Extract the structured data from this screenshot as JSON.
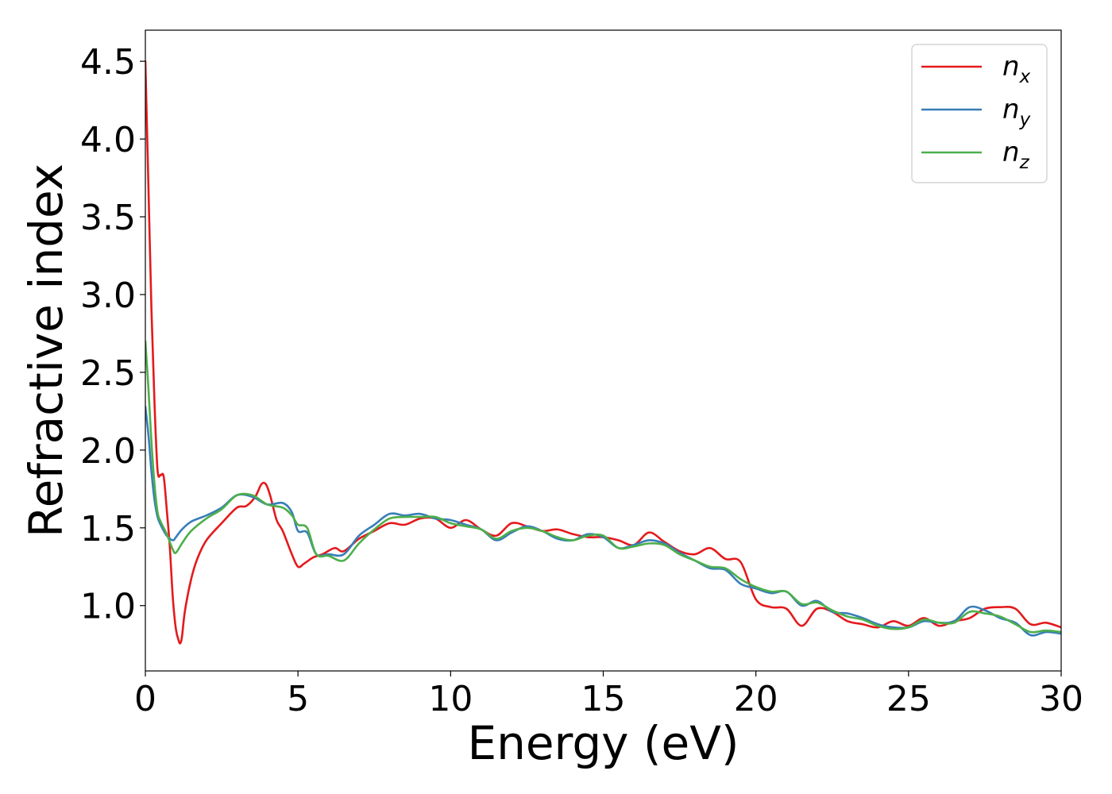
{
  "chart_data": {
    "type": "line",
    "title": "",
    "xlabel": "Energy (eV)",
    "ylabel": "Refractive index",
    "xlim": [
      0,
      30
    ],
    "ylim": [
      0.58,
      4.7
    ],
    "xticks": [
      0,
      5,
      10,
      15,
      20,
      25,
      30
    ],
    "yticks": [
      1.0,
      1.5,
      2.0,
      2.5,
      3.0,
      3.5,
      4.0,
      4.5
    ],
    "xtick_labels": [
      "0",
      "5",
      "10",
      "15",
      "20",
      "25",
      "30"
    ],
    "ytick_labels": [
      "1.0",
      "1.5",
      "2.0",
      "2.5",
      "3.0",
      "3.5",
      "4.0",
      "4.5"
    ],
    "grid": false,
    "legend_position": "top-right",
    "series": [
      {
        "name": "n_x",
        "label_base": "n",
        "label_sub": "x",
        "color": "#e41a1c",
        "x": [
          0.0,
          0.1,
          0.2,
          0.3,
          0.4,
          0.5,
          0.6,
          0.7,
          0.8,
          0.9,
          1.0,
          1.1,
          1.15,
          1.2,
          1.3,
          1.5,
          1.7,
          2.0,
          2.5,
          3.0,
          3.3,
          3.6,
          3.8,
          3.95,
          4.1,
          4.3,
          4.5,
          4.8,
          5.0,
          5.2,
          5.5,
          5.8,
          6.2,
          6.5,
          7.0,
          7.5,
          8.0,
          8.5,
          9.0,
          9.5,
          10.0,
          10.5,
          11.0,
          11.5,
          12.0,
          12.5,
          13.0,
          13.5,
          14.0,
          14.5,
          15.0,
          15.5,
          16.0,
          16.5,
          17.0,
          17.5,
          18.0,
          18.5,
          19.0,
          19.5,
          20.0,
          20.5,
          21.0,
          21.5,
          22.0,
          22.5,
          23.0,
          23.5,
          24.0,
          24.5,
          25.0,
          25.5,
          26.0,
          26.5,
          27.0,
          27.5,
          28.0,
          28.5,
          29.0,
          29.5,
          30.0
        ],
        "y": [
          4.5,
          3.7,
          2.9,
          2.3,
          1.87,
          1.84,
          1.83,
          1.62,
          1.38,
          1.05,
          0.85,
          0.77,
          0.76,
          0.8,
          0.97,
          1.17,
          1.3,
          1.42,
          1.53,
          1.63,
          1.64,
          1.7,
          1.78,
          1.78,
          1.7,
          1.55,
          1.48,
          1.33,
          1.25,
          1.27,
          1.31,
          1.33,
          1.37,
          1.35,
          1.43,
          1.48,
          1.53,
          1.52,
          1.56,
          1.56,
          1.5,
          1.55,
          1.49,
          1.45,
          1.53,
          1.51,
          1.48,
          1.49,
          1.46,
          1.44,
          1.44,
          1.42,
          1.39,
          1.47,
          1.41,
          1.35,
          1.33,
          1.37,
          1.3,
          1.28,
          1.04,
          0.99,
          0.98,
          0.87,
          0.98,
          0.96,
          0.9,
          0.88,
          0.86,
          0.9,
          0.87,
          0.92,
          0.87,
          0.9,
          0.92,
          0.98,
          0.99,
          0.98,
          0.88,
          0.89,
          0.86
        ]
      },
      {
        "name": "n_y",
        "label_base": "n",
        "label_sub": "y",
        "color": "#377eb8",
        "x": [
          0.0,
          0.1,
          0.2,
          0.3,
          0.4,
          0.5,
          0.7,
          0.9,
          1.0,
          1.2,
          1.5,
          2.0,
          2.5,
          3.0,
          3.5,
          4.0,
          4.5,
          4.8,
          5.0,
          5.3,
          5.6,
          6.0,
          6.5,
          7.0,
          7.5,
          8.0,
          8.5,
          9.0,
          9.5,
          10.0,
          10.5,
          11.0,
          11.5,
          12.0,
          12.5,
          13.0,
          13.5,
          14.0,
          14.5,
          15.0,
          15.5,
          16.0,
          16.5,
          17.0,
          17.5,
          18.0,
          18.5,
          19.0,
          19.5,
          20.0,
          20.5,
          21.0,
          21.5,
          22.0,
          22.5,
          23.0,
          23.5,
          24.0,
          24.5,
          25.0,
          25.5,
          26.0,
          26.5,
          27.0,
          27.5,
          28.0,
          28.5,
          29.0,
          29.5,
          30.0
        ],
        "y": [
          2.28,
          2.1,
          1.86,
          1.68,
          1.57,
          1.52,
          1.45,
          1.42,
          1.44,
          1.49,
          1.54,
          1.58,
          1.63,
          1.71,
          1.7,
          1.65,
          1.66,
          1.6,
          1.48,
          1.47,
          1.33,
          1.33,
          1.33,
          1.45,
          1.52,
          1.59,
          1.58,
          1.59,
          1.56,
          1.55,
          1.52,
          1.49,
          1.42,
          1.47,
          1.51,
          1.48,
          1.43,
          1.42,
          1.46,
          1.44,
          1.37,
          1.39,
          1.42,
          1.4,
          1.34,
          1.29,
          1.24,
          1.23,
          1.14,
          1.11,
          1.08,
          1.09,
          1.0,
          1.03,
          0.96,
          0.95,
          0.92,
          0.88,
          0.86,
          0.86,
          0.9,
          0.89,
          0.9,
          0.99,
          0.97,
          0.92,
          0.89,
          0.81,
          0.83,
          0.82
        ]
      },
      {
        "name": "n_z",
        "label_base": "n",
        "label_sub": "z",
        "color": "#4daf4a",
        "x": [
          0.0,
          0.1,
          0.2,
          0.3,
          0.4,
          0.5,
          0.7,
          0.9,
          1.0,
          1.2,
          1.5,
          2.0,
          2.5,
          3.0,
          3.5,
          4.0,
          4.5,
          4.8,
          5.0,
          5.3,
          5.6,
          6.0,
          6.5,
          7.0,
          7.5,
          8.0,
          8.5,
          9.0,
          9.5,
          10.0,
          10.5,
          11.0,
          11.5,
          12.0,
          12.5,
          13.0,
          13.5,
          14.0,
          14.5,
          15.0,
          15.5,
          16.0,
          16.5,
          17.0,
          17.5,
          18.0,
          18.5,
          19.0,
          19.5,
          20.0,
          20.5,
          21.0,
          21.5,
          22.0,
          22.5,
          23.0,
          23.5,
          24.0,
          24.5,
          25.0,
          25.5,
          26.0,
          26.5,
          27.0,
          27.5,
          28.0,
          28.5,
          29.0,
          29.5,
          30.0
        ],
        "y": [
          2.7,
          2.4,
          2.05,
          1.78,
          1.6,
          1.54,
          1.46,
          1.36,
          1.34,
          1.4,
          1.48,
          1.56,
          1.62,
          1.71,
          1.71,
          1.65,
          1.63,
          1.58,
          1.52,
          1.5,
          1.33,
          1.32,
          1.29,
          1.4,
          1.49,
          1.56,
          1.57,
          1.57,
          1.57,
          1.53,
          1.51,
          1.49,
          1.43,
          1.48,
          1.5,
          1.48,
          1.44,
          1.42,
          1.45,
          1.45,
          1.37,
          1.38,
          1.4,
          1.39,
          1.33,
          1.29,
          1.25,
          1.24,
          1.17,
          1.12,
          1.09,
          1.09,
          1.01,
          1.02,
          0.97,
          0.93,
          0.91,
          0.87,
          0.85,
          0.86,
          0.91,
          0.89,
          0.89,
          0.96,
          0.95,
          0.93,
          0.88,
          0.83,
          0.84,
          0.83
        ]
      }
    ]
  }
}
